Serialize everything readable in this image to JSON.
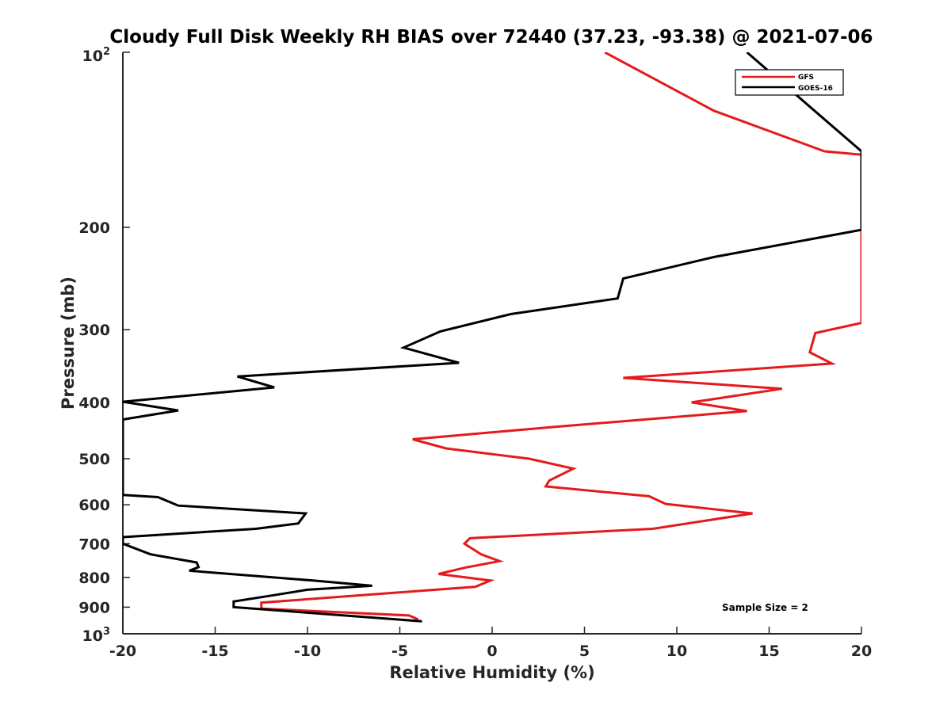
{
  "chart_data": {
    "type": "line",
    "title": "Cloudy Full Disk Weekly RH BIAS over 72440 (37.23, -93.38) @ 2021-07-06",
    "xlabel": "Relative Humidity (%)",
    "ylabel": "Pressure (mb)",
    "xlim": [
      -20,
      20
    ],
    "ylim": [
      100,
      1000
    ],
    "yscale": "log",
    "y_reversed": true,
    "grid": false,
    "legend_position": "top-right",
    "x_ticks": [
      "-20",
      "-15",
      "-10",
      "-5",
      "0",
      "5",
      "10",
      "15",
      "20"
    ],
    "x_tick_values": [
      -20,
      -15,
      -10,
      -5,
      0,
      5,
      10,
      15,
      20
    ],
    "y_ticks": [
      {
        "value": 200,
        "label": "200"
      },
      {
        "value": 300,
        "label": "300"
      },
      {
        "value": 400,
        "label": "400"
      },
      {
        "value": 500,
        "label": "500"
      },
      {
        "value": 600,
        "label": "600"
      },
      {
        "value": 700,
        "label": "700"
      },
      {
        "value": 800,
        "label": "800"
      },
      {
        "value": 900,
        "label": "900"
      }
    ],
    "y_tick_top": {
      "value": 100,
      "base": "10",
      "exp": "2"
    },
    "y_tick_bottom": {
      "value": 1000,
      "base": "10",
      "exp": "3"
    },
    "annotation": "Sample Size = 2",
    "series": [
      {
        "name": "GFS",
        "color": "#e41a1c",
        "x": [
          6.1,
          12,
          18,
          20,
          20,
          17.5,
          17.2,
          18.4,
          7.1,
          15.7,
          10.8,
          13.8,
          3.3,
          -4.3,
          -2.5,
          2,
          4.4,
          3.1,
          2.9,
          8.5,
          9.4,
          14.1,
          8.7,
          -1.2,
          -1.5,
          -0.6,
          0.4,
          -1.5,
          -2.9,
          -0.1,
          -0.9,
          -12.5,
          -12.5,
          -4.5,
          -4
        ],
        "y": [
          100,
          126,
          148,
          150,
          292,
          304,
          328,
          343,
          363,
          379,
          400,
          414,
          441,
          463,
          480,
          500,
          520,
          545,
          558,
          580,
          598,
          621,
          660,
          685,
          700,
          730,
          750,
          770,
          789,
          810,
          830,
          884,
          905,
          930,
          945
        ]
      },
      {
        "name": "GOES-16",
        "color": "#000000",
        "x": [
          13.8,
          20,
          20,
          12,
          7.1,
          6.8,
          1,
          -2.8,
          -4.8,
          -1.8,
          -13.8,
          -11.8,
          -20,
          -17,
          -20,
          -20,
          -18.1,
          -17,
          -10.1,
          -10.5,
          -12.8,
          -20,
          -20,
          -18.5,
          -16,
          -15.9,
          -16.4,
          -9.7,
          -6.5,
          -10,
          -11.8,
          -14,
          -14,
          -9,
          -3.8
        ],
        "y": [
          100,
          148,
          202,
          225,
          245,
          265,
          282,
          302,
          322,
          342,
          361,
          377,
          399,
          413,
          428,
          577,
          582,
          602,
          621,
          646,
          660,
          682,
          700,
          730,
          754,
          768,
          779,
          810,
          827,
          840,
          858,
          880,
          900,
          925,
          952
        ]
      }
    ]
  }
}
